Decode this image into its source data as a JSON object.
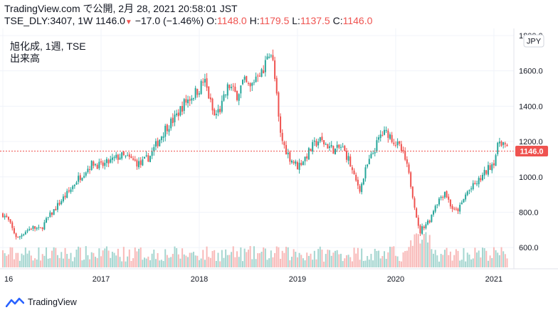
{
  "header": {
    "line1": "TradingView.com で公開, 2月 28, 2021 20:58:01 JST",
    "symbol": "TSE_DLY:3407, 1W",
    "last": "1146.0",
    "change": "−17.0 (−1.46%)",
    "o_label": "O:",
    "o_value": "1148.0",
    "h_label": "H:",
    "h_value": "1179.5",
    "l_label": "L:",
    "l_value": "1137.5",
    "c_label": "C:",
    "c_value": "1146.0"
  },
  "chart_label": {
    "name": "旭化成, 1週, TSE",
    "volume": "出来高"
  },
  "currency": "JPY",
  "footer": {
    "brand": "TradingView"
  },
  "colors": {
    "up": "#26a69a",
    "down": "#ef5350",
    "up_volume": "#a5d6d0",
    "down_volume": "#f8b9b8",
    "price_line": "#ef5350"
  },
  "chart_data": {
    "type": "candlestick",
    "title": "旭化成, 1週, TSE",
    "ylabel": "JPY",
    "yticks": [
      600,
      800,
      1000,
      1200,
      1400,
      1600,
      1800
    ],
    "ylim": [
      480,
      1840
    ],
    "xticks": [
      "16",
      "2017",
      "2018",
      "2019",
      "2020",
      "2021"
    ],
    "xlim_years": [
      2016.0,
      2021.16
    ],
    "last_price": 1146.0,
    "last_price_label": "1146.0",
    "price_points": [
      [
        2016.0,
        790
      ],
      [
        2016.05,
        760
      ],
      [
        2016.1,
        700
      ],
      [
        2016.15,
        650
      ],
      [
        2016.22,
        690
      ],
      [
        2016.3,
        715
      ],
      [
        2016.38,
        700
      ],
      [
        2016.45,
        760
      ],
      [
        2016.52,
        810
      ],
      [
        2016.6,
        870
      ],
      [
        2016.68,
        920
      ],
      [
        2016.75,
        980
      ],
      [
        2016.83,
        1030
      ],
      [
        2016.92,
        1080
      ],
      [
        2017.0,
        1060
      ],
      [
        2017.1,
        1090
      ],
      [
        2017.2,
        1120
      ],
      [
        2017.3,
        1100
      ],
      [
        2017.4,
        1070
      ],
      [
        2017.5,
        1120
      ],
      [
        2017.58,
        1200
      ],
      [
        2017.66,
        1280
      ],
      [
        2017.75,
        1330
      ],
      [
        2017.85,
        1420
      ],
      [
        2017.93,
        1460
      ],
      [
        2018.0,
        1500
      ],
      [
        2018.05,
        1550
      ],
      [
        2018.1,
        1450
      ],
      [
        2018.15,
        1340
      ],
      [
        2018.22,
        1390
      ],
      [
        2018.3,
        1520
      ],
      [
        2018.38,
        1460
      ],
      [
        2018.45,
        1540
      ],
      [
        2018.52,
        1500
      ],
      [
        2018.6,
        1600
      ],
      [
        2018.65,
        1580
      ],
      [
        2018.7,
        1720
      ],
      [
        2018.74,
        1690
      ],
      [
        2018.78,
        1500
      ],
      [
        2018.82,
        1250
      ],
      [
        2018.86,
        1180
      ],
      [
        2018.92,
        1110
      ],
      [
        2019.0,
        1060
      ],
      [
        2019.08,
        1110
      ],
      [
        2019.15,
        1170
      ],
      [
        2019.22,
        1210
      ],
      [
        2019.3,
        1180
      ],
      [
        2019.38,
        1150
      ],
      [
        2019.45,
        1170
      ],
      [
        2019.52,
        1100
      ],
      [
        2019.58,
        990
      ],
      [
        2019.64,
        930
      ],
      [
        2019.7,
        1050
      ],
      [
        2019.78,
        1150
      ],
      [
        2019.85,
        1240
      ],
      [
        2019.92,
        1250
      ],
      [
        2020.0,
        1190
      ],
      [
        2020.05,
        1160
      ],
      [
        2020.1,
        1090
      ],
      [
        2020.15,
        970
      ],
      [
        2020.2,
        820
      ],
      [
        2020.24,
        680
      ],
      [
        2020.28,
        720
      ],
      [
        2020.35,
        760
      ],
      [
        2020.4,
        840
      ],
      [
        2020.45,
        880
      ],
      [
        2020.5,
        920
      ],
      [
        2020.55,
        850
      ],
      [
        2020.6,
        800
      ],
      [
        2020.66,
        830
      ],
      [
        2020.72,
        910
      ],
      [
        2020.78,
        940
      ],
      [
        2020.85,
        980
      ],
      [
        2020.92,
        1030
      ],
      [
        2021.0,
        1090
      ],
      [
        2021.06,
        1210
      ],
      [
        2021.1,
        1190
      ],
      [
        2021.14,
        1146
      ]
    ]
  }
}
